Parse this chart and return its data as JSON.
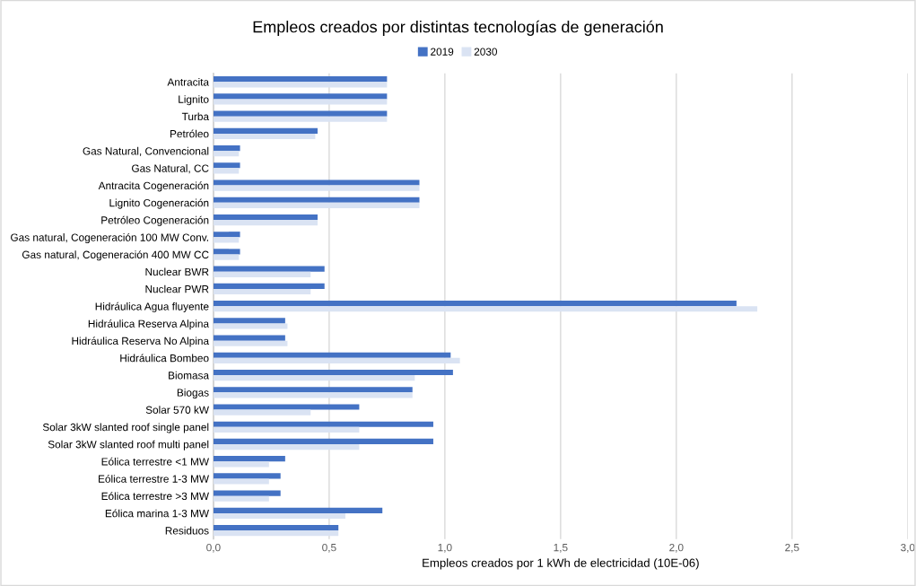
{
  "chart_data": {
    "type": "bar",
    "orientation": "horizontal",
    "title": "Empleos creados por distintas tecnologías de generación",
    "xlabel": "Empleos creados por 1 kWh de electricidad (10E-06)",
    "categories": [
      "Antracita",
      "Lignito",
      "Turba",
      "Petróleo",
      "Gas Natural, Convencional",
      "Gas Natural, CC",
      "Antracita Cogeneración",
      "Lignito Cogeneración",
      "Petróleo Cogeneración",
      "Gas natural, Cogeneración 100 MW Conv.",
      "Gas natural, Cogeneración 400 MW CC",
      "Nuclear BWR",
      "Nuclear PWR",
      "Hidráulica Agua fluyente",
      "Hidráulica Reserva Alpina",
      "Hidráulica Reserva No Alpina",
      "Hidráulica Bombeo",
      "Biomasa",
      "Biogas",
      "Solar 570 kW",
      "Solar 3kW slanted roof single panel",
      "Solar 3kW slanted roof multi panel",
      "Eólica terrestre <1 MW",
      "Eólica terrestre 1-3 MW",
      "Eólica terrestre >3 MW",
      "Eólica marina 1-3 MW",
      "Residuos"
    ],
    "series": [
      {
        "name": "2019",
        "color": "#4472c4",
        "values": [
          0.75,
          0.75,
          0.75,
          0.45,
          0.115,
          0.115,
          0.89,
          0.89,
          0.45,
          0.115,
          0.115,
          0.48,
          0.48,
          2.26,
          0.31,
          0.31,
          1.025,
          1.035,
          0.86,
          0.63,
          0.95,
          0.95,
          0.31,
          0.29,
          0.29,
          0.73,
          0.54
        ]
      },
      {
        "name": "2030",
        "color": "#dae3f3",
        "values": [
          0.75,
          0.75,
          0.75,
          0.44,
          0.11,
          0.11,
          0.89,
          0.89,
          0.45,
          0.11,
          0.11,
          0.42,
          0.42,
          2.35,
          0.32,
          0.32,
          1.065,
          0.87,
          0.86,
          0.42,
          0.63,
          0.63,
          0.24,
          0.24,
          0.24,
          0.57,
          0.54
        ]
      }
    ],
    "xlim": [
      0,
      3
    ],
    "xticks": [
      {
        "value": 0,
        "label": "0,0"
      },
      {
        "value": 0.5,
        "label": "0,5"
      },
      {
        "value": 1,
        "label": "1,0"
      },
      {
        "value": 1.5,
        "label": "1,5"
      },
      {
        "value": 2,
        "label": "2,0"
      },
      {
        "value": 2.5,
        "label": "2,5"
      },
      {
        "value": 3,
        "label": "3,0"
      }
    ],
    "grid": "x",
    "legend": "top"
  }
}
